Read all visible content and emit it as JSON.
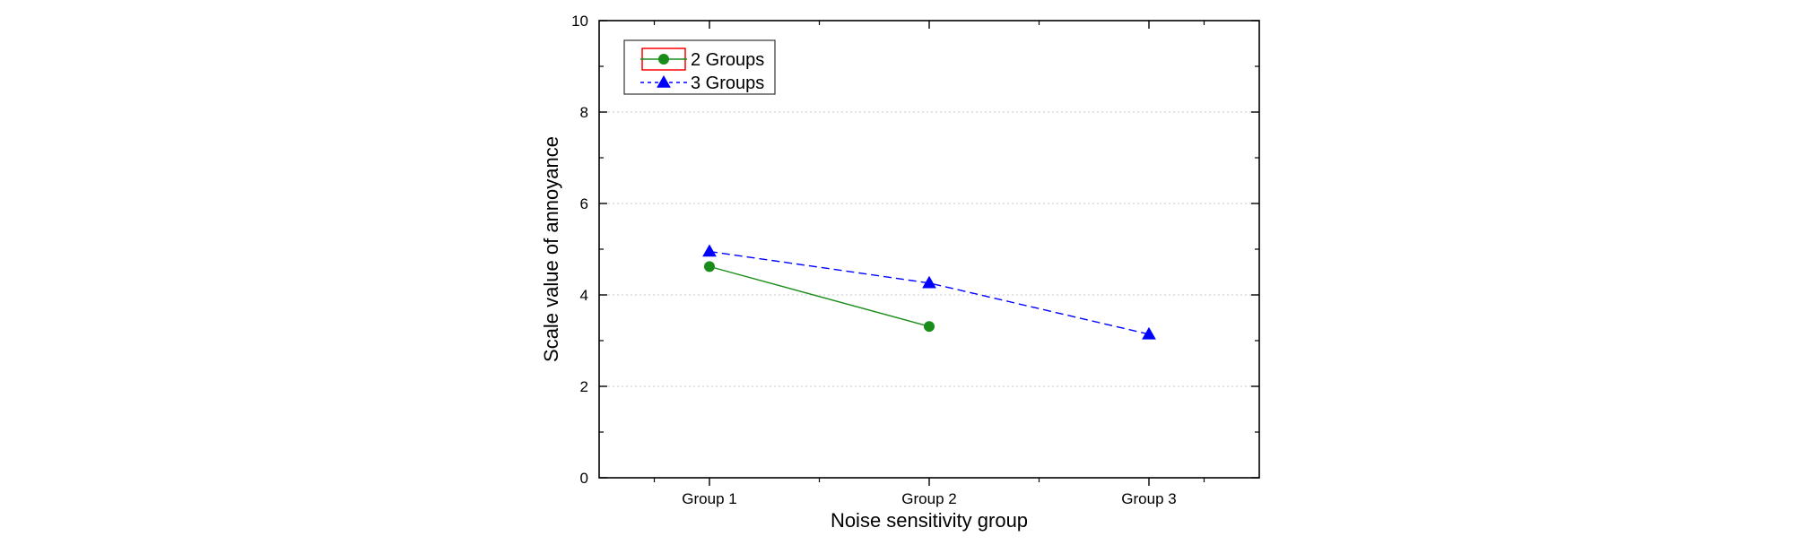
{
  "chart_data": {
    "type": "line",
    "title": "",
    "xlabel": "Noise sensitivity group",
    "ylabel": "Scale value of annoyance",
    "categories": [
      "Group 1",
      "Group 2",
      "Group 3"
    ],
    "ylim": [
      0,
      10
    ],
    "yticks": [
      "0",
      "2",
      "4",
      "6",
      "8",
      "10"
    ],
    "grid": "horizontal dotted",
    "legend_position": "top-left",
    "series": [
      {
        "name": "2 Groups",
        "values": [
          4.62,
          3.31,
          null
        ],
        "color": "#1a8c1a",
        "line_style": "solid",
        "marker": "circle"
      },
      {
        "name": "3 Groups",
        "values": [
          4.95,
          4.26,
          3.14
        ],
        "color": "#0000ff",
        "line_style": "dashed",
        "marker": "triangle"
      }
    ],
    "legend_border_highlight": "#ff0000"
  }
}
